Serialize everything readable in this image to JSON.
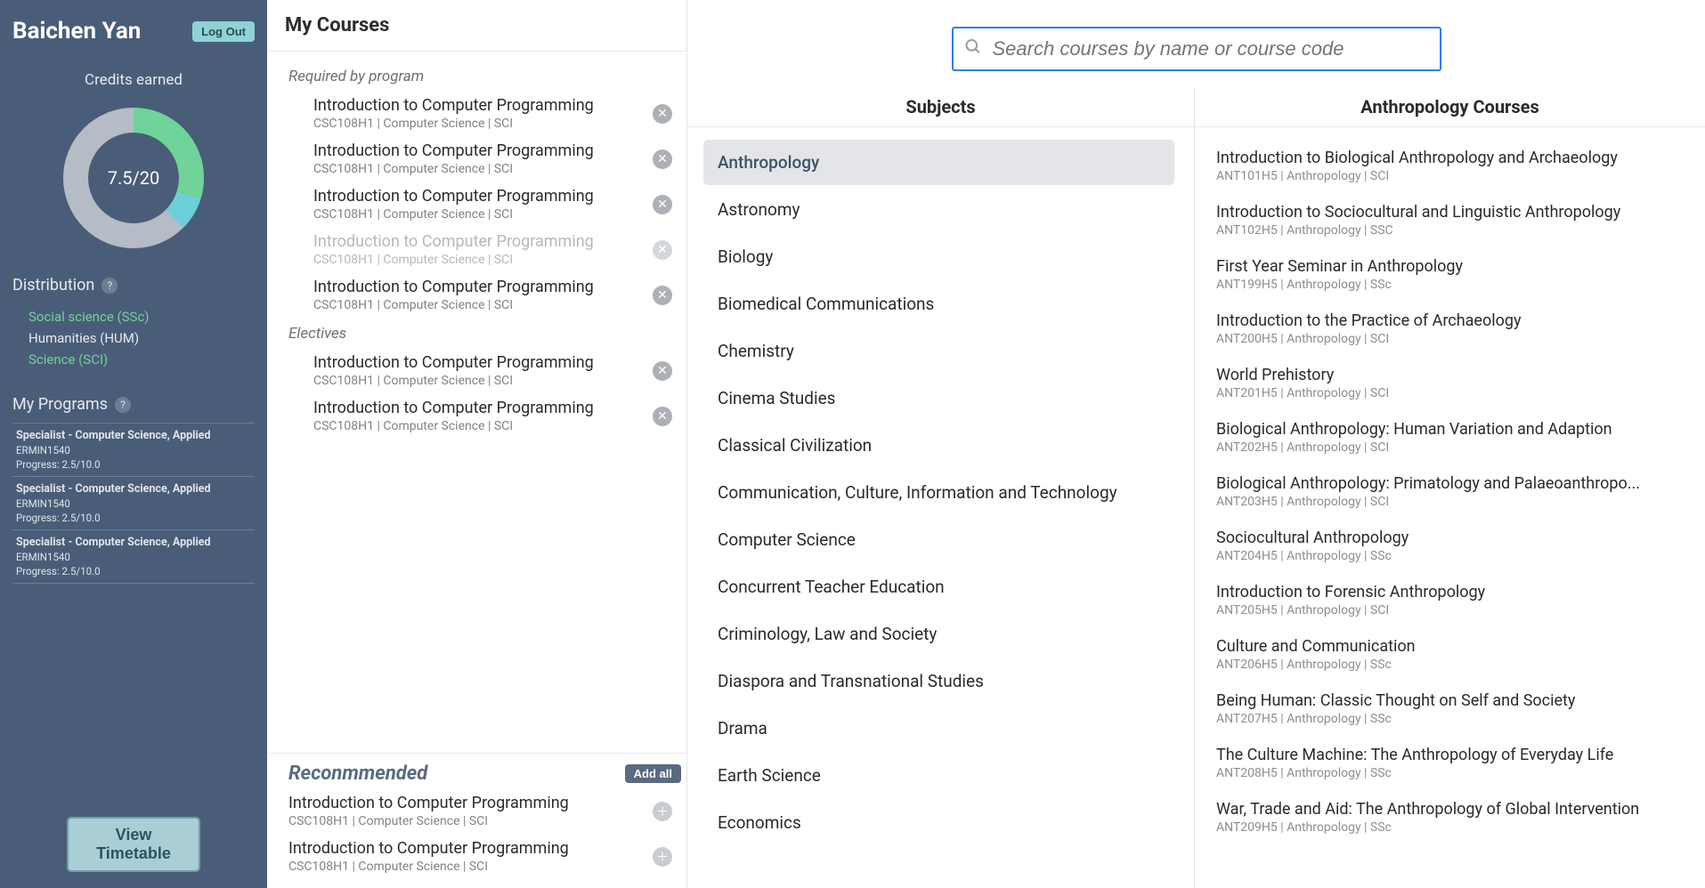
{
  "sidebar": {
    "userName": "Baichen Yan",
    "logoutLabel": "Log Out",
    "creditsTitle": "Credits earned",
    "creditsText": "7.5/20",
    "donut": {
      "radius": 65,
      "strokeWidth": 28,
      "trackColor": "#b6bcc5",
      "segments": [
        {
          "color": "#6fd39a",
          "fraction": 0.3
        },
        {
          "color": "#6bd0da",
          "fraction": 0.075
        }
      ]
    },
    "distribution": {
      "title": "Distribution",
      "items": [
        {
          "label": "Social science (SSc)",
          "classKey": "dist-green"
        },
        {
          "label": "Humanities (HUM)",
          "classKey": "dist-white"
        },
        {
          "label": "Science (SCI)",
          "classKey": "dist-green"
        }
      ]
    },
    "programs": {
      "title": "My Programs",
      "items": [
        {
          "title": "Specialist - Computer Science, Applied",
          "code": "ERMIN1540",
          "progress": "Progress: 2.5/10.0"
        },
        {
          "title": "Specialist - Computer Science, Applied",
          "code": "ERMIN1540",
          "progress": "Progress: 2.5/10.0"
        },
        {
          "title": "Specialist - Computer Science, Applied",
          "code": "ERMIN1540",
          "progress": "Progress: 2.5/10.0"
        }
      ]
    },
    "viewTimetableLabel": "View Timetable"
  },
  "coursesPanel": {
    "title": "My Courses",
    "groups": [
      {
        "label": "Required by program",
        "courses": [
          {
            "title": "Introduction to Computer Programming",
            "sub": "CSC108H1 | Computer Science | SCI",
            "faded": false
          },
          {
            "title": "Introduction to Computer Programming",
            "sub": "CSC108H1 | Computer Science | SCI",
            "faded": false
          },
          {
            "title": "Introduction to Computer Programming",
            "sub": "CSC108H1 | Computer Science | SCI",
            "faded": false
          },
          {
            "title": "Introduction to Computer Programming",
            "sub": "CSC108H1 | Computer Science | SCI",
            "faded": true
          },
          {
            "title": "Introduction to Computer Programming",
            "sub": "CSC108H1 | Computer Science | SCI",
            "faded": false
          }
        ]
      },
      {
        "label": "Electives",
        "courses": [
          {
            "title": "Introduction to Computer Programming",
            "sub": "CSC108H1 | Computer Science | SCI",
            "faded": false
          },
          {
            "title": "Introduction to Computer Programming",
            "sub": "CSC108H1 | Computer Science | SCI",
            "faded": false
          }
        ]
      }
    ],
    "recommended": {
      "title": "Reconmmended",
      "addAllLabel": "Add all",
      "courses": [
        {
          "title": "Introduction to Computer Programming",
          "sub": "CSC108H1 | Computer Science | SCI"
        },
        {
          "title": "Introduction to Computer Programming",
          "sub": "CSC108H1 | Computer Science | SCI"
        }
      ]
    }
  },
  "browse": {
    "searchPlaceholder": "Search courses by name or course code",
    "subjectsTitle": "Subjects",
    "subjects": [
      "Anthropology",
      "Astronomy",
      "Biology",
      "Biomedical Communications",
      "Chemistry",
      "Cinema Studies",
      "Classical Civilization",
      "Communication, Culture, Information and Technology",
      "Computer Science",
      "Concurrent Teacher Education",
      "Criminology, Law and Society",
      "Diaspora and Transnational Studies",
      "Drama",
      "Earth Science",
      "Economics"
    ],
    "activeSubjectIndex": 0,
    "resultsTitle": "Anthropology Courses",
    "results": [
      {
        "title": "Introduction to Biological Anthropology and Archaeology",
        "sub": "ANT101H5 | Anthropology | SCI"
      },
      {
        "title": "Introduction to Sociocultural and Linguistic Anthropology",
        "sub": "ANT102H5 | Anthropology | SSC"
      },
      {
        "title": "First Year Seminar in Anthropology",
        "sub": "ANT199H5 | Anthropology | SSc"
      },
      {
        "title": "Introduction to the Practice of Archaeology",
        "sub": "ANT200H5 | Anthropology | SCI"
      },
      {
        "title": "World Prehistory",
        "sub": "ANT201H5 | Anthropology | SCI"
      },
      {
        "title": "Biological Anthropology: Human Variation and Adaption",
        "sub": "ANT202H5 | Anthropology | SCI"
      },
      {
        "title": "Biological Anthropology: Primatology and Palaeoanthropo...",
        "sub": "ANT203H5 | Anthropology | SCI"
      },
      {
        "title": "Sociocultural Anthropology",
        "sub": "ANT204H5 | Anthropology | SSc"
      },
      {
        "title": "Introduction to Forensic Anthropology",
        "sub": "ANT205H5 | Anthropology | SCI"
      },
      {
        "title": "Culture and Communication",
        "sub": "ANT206H5 | Anthropology | SSc"
      },
      {
        "title": "Being Human: Classic Thought on Self and Society",
        "sub": "ANT207H5 | Anthropology | SSc"
      },
      {
        "title": "The Culture Machine: The Anthropology of Everyday Life",
        "sub": "ANT208H5 | Anthropology | SSc"
      },
      {
        "title": "War, Trade and Aid: The Anthropology of Global Intervention",
        "sub": "ANT209H5 | Anthropology | SSc"
      }
    ]
  }
}
